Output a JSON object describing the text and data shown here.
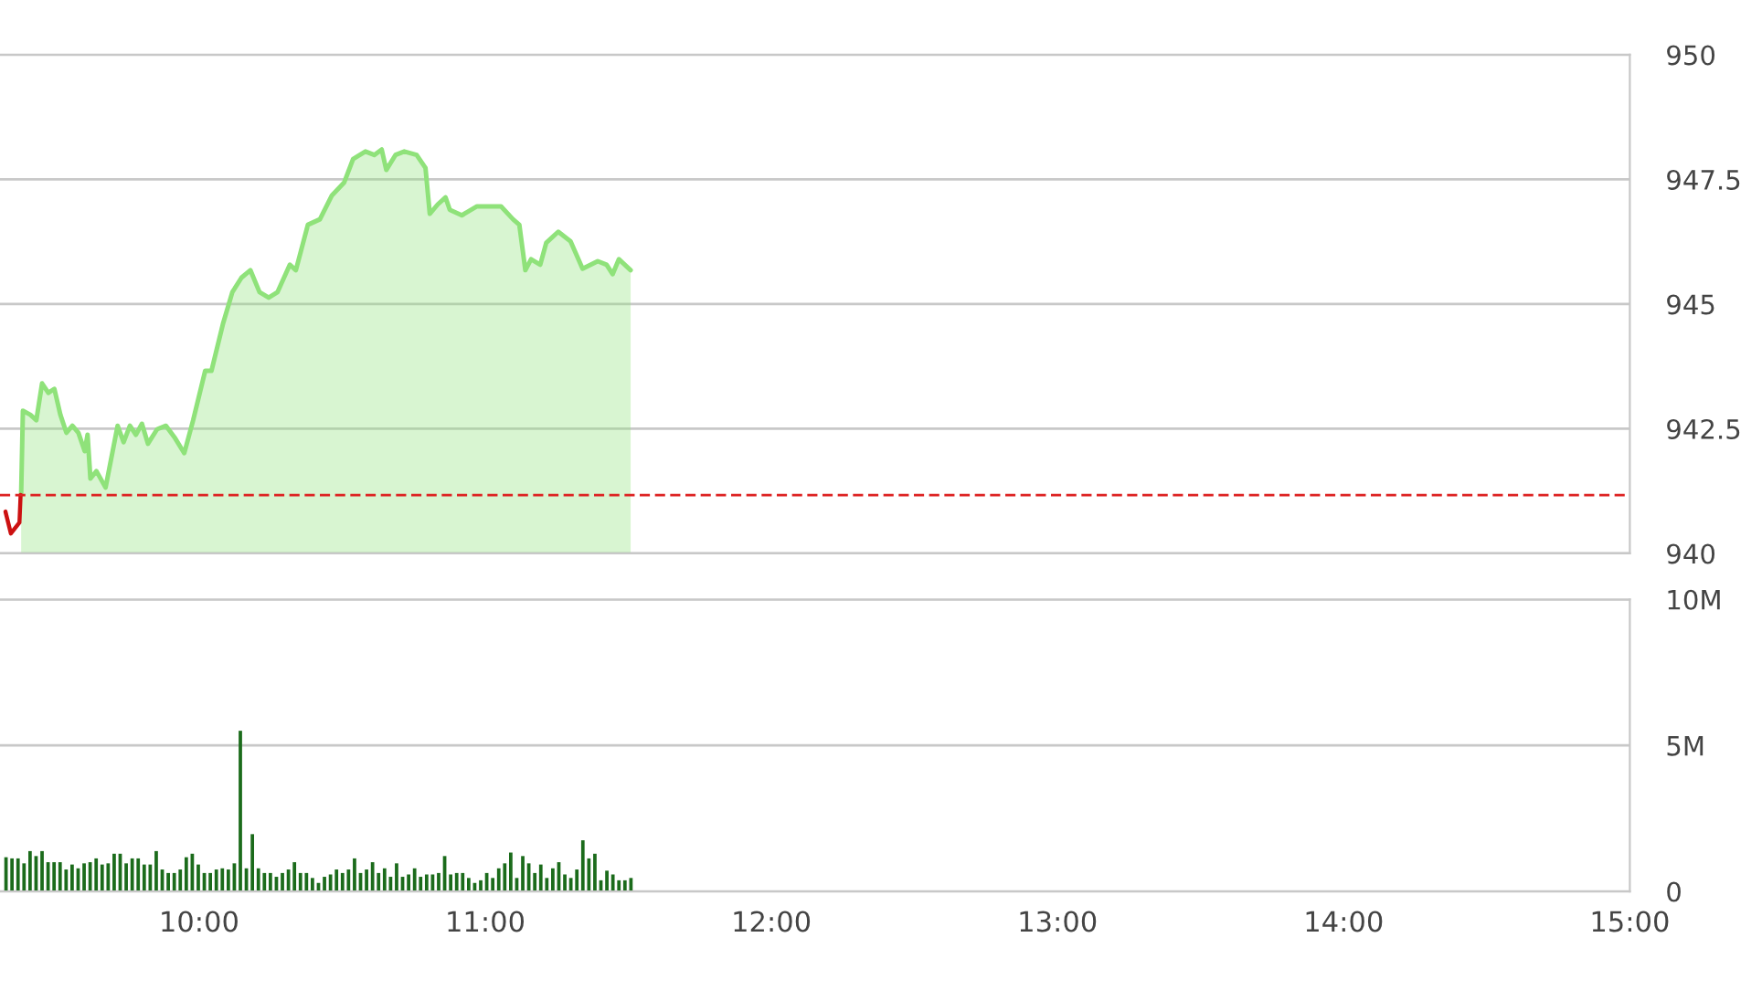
{
  "chart_data": [
    {
      "type": "area",
      "xlim": [
        9.304,
        15
      ],
      "ylim": [
        940,
        950
      ],
      "yticks": [
        940,
        942.5,
        945,
        947.5,
        950
      ],
      "tick_labels": "y",
      "grid": "y",
      "xticks": [
        {
          "value": 10,
          "label": null
        },
        {
          "value": 11,
          "label": null
        },
        {
          "value": 12,
          "label": null
        },
        {
          "value": 13,
          "label": null
        },
        {
          "value": 14,
          "label": null
        },
        {
          "value": 15,
          "label": null
        }
      ],
      "series": [
        {
          "color": "#8fe27a",
          "x": [
            9.378,
            9.384,
            9.41,
            9.431,
            9.451,
            9.473,
            9.494,
            9.515,
            9.536,
            9.557,
            9.578,
            9.6,
            9.61,
            9.62,
            9.641,
            9.673,
            9.715,
            9.736,
            9.758,
            9.779,
            9.8,
            9.821,
            9.853,
            9.884,
            9.916,
            9.948,
            9.979,
            10.021,
            10.043,
            10.084,
            10.116,
            10.148,
            10.179,
            10.211,
            10.243,
            10.274,
            10.317,
            10.338,
            10.38,
            10.422,
            10.464,
            10.507,
            10.538,
            10.581,
            10.612,
            10.638,
            10.654,
            10.686,
            10.717,
            10.76,
            10.791,
            10.806,
            10.834,
            10.861,
            10.876,
            10.918,
            10.971,
            11.055,
            11.097,
            11.119,
            11.14,
            11.16,
            11.192,
            11.213,
            11.255,
            11.298,
            11.34,
            11.393,
            11.424,
            11.445,
            11.467,
            11.508
          ],
          "values": [
            941.21,
            942.86,
            942.78,
            942.67,
            943.41,
            943.22,
            943.3,
            942.78,
            942.42,
            942.56,
            942.42,
            942.05,
            942.38,
            941.5,
            941.65,
            941.32,
            942.56,
            942.23,
            942.56,
            942.38,
            942.6,
            942.2,
            942.49,
            942.56,
            942.31,
            942.01,
            942.67,
            943.66,
            943.66,
            944.62,
            945.24,
            945.53,
            945.68,
            945.24,
            945.13,
            945.24,
            945.79,
            945.68,
            946.59,
            946.7,
            947.18,
            947.44,
            947.91,
            948.06,
            947.99,
            948.1,
            947.69,
            947.99,
            948.06,
            947.99,
            947.73,
            946.81,
            947.0,
            947.14,
            946.89,
            946.78,
            946.96,
            946.96,
            946.7,
            946.59,
            945.68,
            945.9,
            945.79,
            946.23,
            946.45,
            946.26,
            945.71,
            945.86,
            945.79,
            945.6,
            945.9,
            945.68
          ]
        },
        {
          "type": "line",
          "color": "#cc1111",
          "x": [
            9.323,
            9.342,
            9.372,
            9.376
          ],
          "values": [
            940.84,
            940.4,
            940.62,
            941.17
          ]
        }
      ],
      "ref_lines": [
        {
          "axis": "y",
          "value": 941.17,
          "color": "#dd2222",
          "line_style": "dashed"
        }
      ]
    },
    {
      "type": "bar",
      "xlim": [
        9.304,
        15
      ],
      "ylim": [
        0,
        10
      ],
      "yticks": [
        0,
        {
          "value": 5,
          "label": "5M"
        },
        {
          "value": 10,
          "label": "10M"
        }
      ],
      "grid": "y",
      "xticks": [
        {
          "value": 10,
          "label": "10:00"
        },
        {
          "value": 11,
          "label": "11:00"
        },
        {
          "value": 12,
          "label": "12:00"
        },
        {
          "value": 13,
          "label": "13:00"
        },
        {
          "value": 14,
          "label": "14:00"
        },
        {
          "value": 15,
          "label": "15:00"
        }
      ],
      "x": [
        9.325,
        9.346,
        9.367,
        9.388,
        9.409,
        9.43,
        9.451,
        9.472,
        9.493,
        9.514,
        9.535,
        9.556,
        9.577,
        9.598,
        9.619,
        9.64,
        9.661,
        9.682,
        9.703,
        9.724,
        9.745,
        9.766,
        9.787,
        9.808,
        9.829,
        9.85,
        9.871,
        9.892,
        9.913,
        9.934,
        9.955,
        9.976,
        9.997,
        10.018,
        10.039,
        10.06,
        10.081,
        10.102,
        10.123,
        10.144,
        10.165,
        10.186,
        10.207,
        10.228,
        10.249,
        10.27,
        10.291,
        10.312,
        10.333,
        10.354,
        10.375,
        10.396,
        10.417,
        10.438,
        10.459,
        10.48,
        10.501,
        10.522,
        10.543,
        10.564,
        10.585,
        10.606,
        10.627,
        10.648,
        10.669,
        10.69,
        10.711,
        10.732,
        10.753,
        10.774,
        10.795,
        10.816,
        10.837,
        10.858,
        10.879,
        10.9,
        10.921,
        10.942,
        10.963,
        10.984,
        11.005,
        11.026,
        11.047,
        11.068,
        11.089,
        11.11,
        11.131,
        11.152,
        11.173,
        11.194,
        11.215,
        11.236,
        11.257,
        11.278,
        11.299,
        11.32,
        11.341,
        11.362,
        11.383,
        11.404,
        11.425,
        11.446,
        11.467,
        11.488,
        11.509
      ],
      "series": [
        {
          "color": "#1b6b1b",
          "values": [
            1.17,
            1.13,
            1.13,
            0.96,
            1.38,
            1.21,
            1.38,
            1.0,
            1.0,
            1.0,
            0.75,
            0.92,
            0.79,
            0.96,
            1.0,
            1.13,
            0.92,
            0.96,
            1.29,
            1.29,
            0.96,
            1.13,
            1.13,
            0.92,
            0.92,
            1.38,
            0.75,
            0.63,
            0.63,
            0.75,
            1.17,
            1.29,
            0.92,
            0.63,
            0.63,
            0.75,
            0.79,
            0.75,
            0.96,
            5.5,
            0.79,
            1.96,
            0.79,
            0.63,
            0.63,
            0.5,
            0.63,
            0.75,
            1.0,
            0.63,
            0.63,
            0.46,
            0.29,
            0.5,
            0.58,
            0.75,
            0.63,
            0.75,
            1.13,
            0.63,
            0.75,
            1.0,
            0.63,
            0.79,
            0.5,
            0.96,
            0.5,
            0.58,
            0.79,
            0.5,
            0.58,
            0.58,
            0.63,
            1.21,
            0.58,
            0.63,
            0.63,
            0.46,
            0.29,
            0.38,
            0.63,
            0.46,
            0.79,
            0.96,
            1.33,
            0.46,
            1.21,
            0.96,
            0.63,
            0.92,
            0.46,
            0.79,
            1.0,
            0.58,
            0.46,
            0.75,
            1.75,
            1.13,
            1.29,
            0.38,
            0.71,
            0.58,
            0.38,
            0.38,
            0.46
          ]
        }
      ]
    }
  ]
}
